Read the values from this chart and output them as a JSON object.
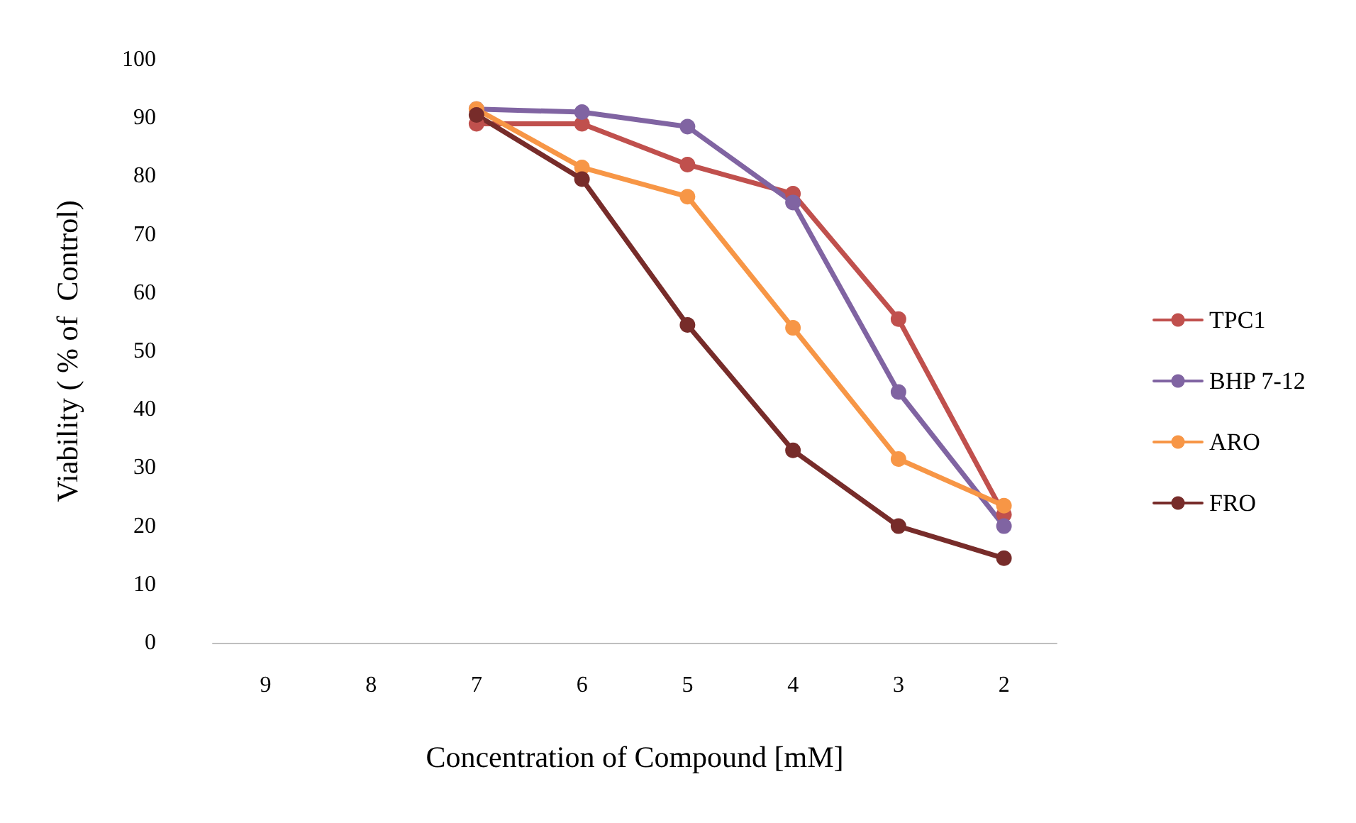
{
  "chart_data": {
    "type": "line",
    "xlabel": "Concentration of Compound [mM]",
    "ylabel": "Viability ( % of  Control)",
    "categories": [
      "9",
      "8",
      "7",
      "6",
      "5",
      "4",
      "3",
      "2"
    ],
    "series": [
      {
        "name": "TPC1",
        "color": "#c0504d",
        "values": [
          null,
          null,
          89,
          89,
          82,
          77,
          55.5,
          22
        ]
      },
      {
        "name": "BHP 7-12",
        "color": "#8064a2",
        "values": [
          null,
          null,
          91.5,
          91,
          88.5,
          75.5,
          43,
          20
        ]
      },
      {
        "name": "ARO",
        "color": "#f79646",
        "values": [
          null,
          null,
          91.5,
          81.5,
          76.5,
          54,
          31.5,
          23.5
        ]
      },
      {
        "name": "FRO",
        "color": "#772c2a",
        "values": [
          null,
          null,
          90.5,
          79.5,
          54.5,
          33,
          20,
          14.5
        ]
      }
    ],
    "ylim": [
      0,
      100
    ],
    "yticks": [
      0,
      10,
      20,
      30,
      40,
      50,
      60,
      70,
      80,
      90,
      100
    ],
    "grid": false,
    "legend": "right",
    "marker": "circle",
    "line_style": "solid"
  }
}
